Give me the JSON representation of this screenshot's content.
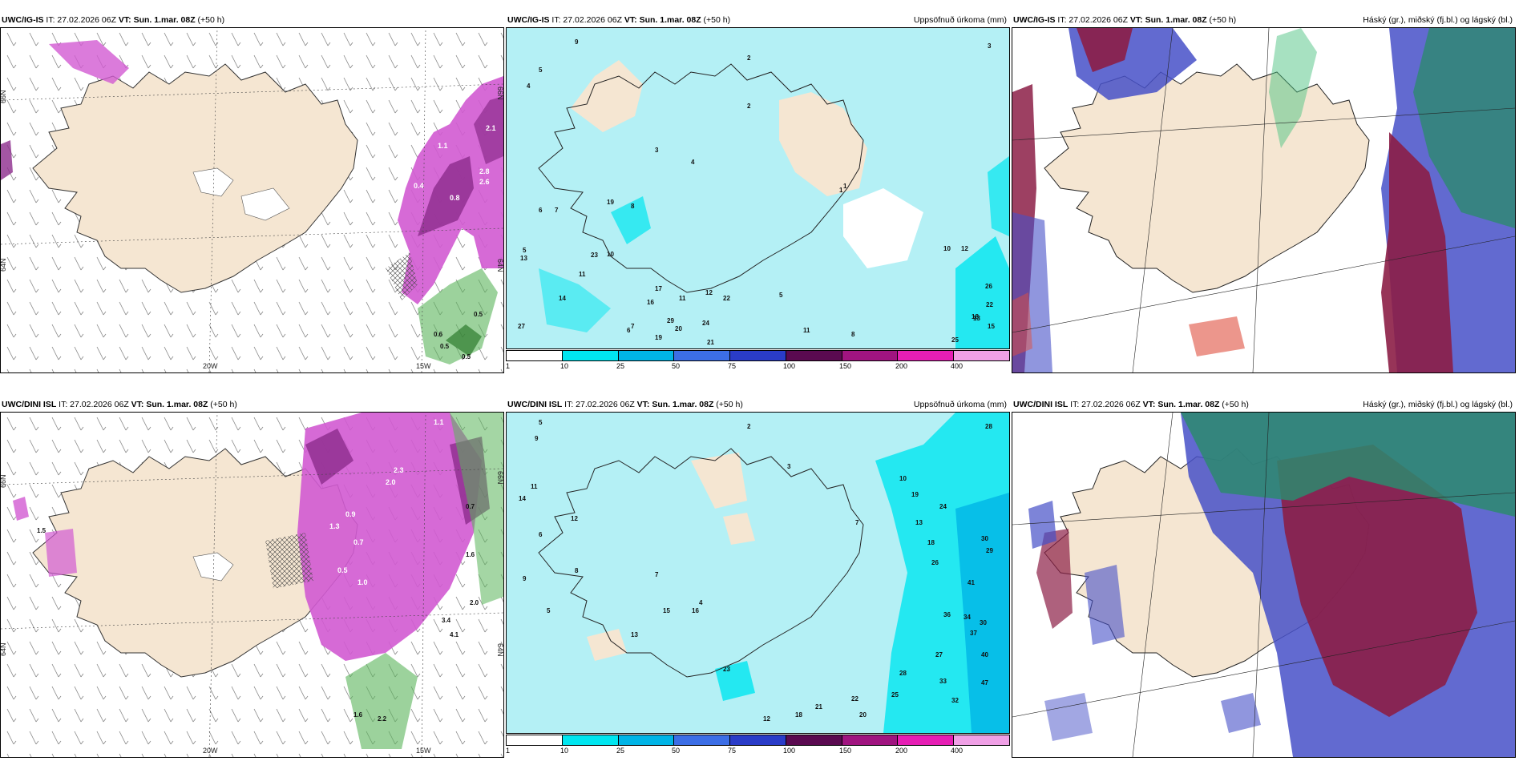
{
  "rows": [
    {
      "model": "UWC/IG-IS",
      "init_time": "IT: 27.02.2026 06Z",
      "valid_time": "VT: Sun. 1.mar. 08Z",
      "lead": "(+50 h)"
    },
    {
      "model": "UWC/DINI ISL",
      "init_time": "IT: 27.02.2026 06Z",
      "valid_time": "VT: Sun. 1.mar. 08Z",
      "lead": "(+50 h)"
    }
  ],
  "panel_titles": {
    "precip": "Uppsöfnuð úrkoma (mm)",
    "clouds": "Háský (gr.), miðský (fj.bl.) og lágský (bl.)"
  },
  "axis_labels": {
    "lon": [
      "20W",
      "15W"
    ],
    "lat_left": [
      "66N",
      "64N"
    ],
    "lat_right": [
      "66N",
      "64N"
    ]
  },
  "precip_legend": {
    "ticks": [
      "1",
      "10",
      "25",
      "50",
      "75",
      "100",
      "150",
      "200",
      "400"
    ],
    "colors": [
      "#ffffff",
      "#00e6f0",
      "#00b4e6",
      "#3c6ee6",
      "#2a3cc8",
      "#5a0a50",
      "#a01480",
      "#e61eb4",
      "#f0a0e6"
    ]
  },
  "colors": {
    "land": "#f5e6d2",
    "ocean_precip": "#b4f0f5",
    "snow_purple": "#d25ad2",
    "snow_dark": "#8c2c8c",
    "rain_green": "#5ab45a",
    "high_cloud": "#2d8a6e",
    "mid_cloud": "#8c1e46",
    "low_cloud": "#4650c8"
  },
  "top_precip_values": [
    "9",
    "3",
    "4",
    "5",
    "2",
    "1",
    "4",
    "6",
    "3",
    "5",
    "7",
    "8",
    "10",
    "13",
    "11",
    "19",
    "23",
    "27",
    "14",
    "6",
    "7",
    "17",
    "29",
    "20",
    "21",
    "19",
    "24",
    "22",
    "11",
    "12",
    "16",
    "1",
    "2",
    "5",
    "8",
    "10",
    "13",
    "12",
    "26",
    "18",
    "15",
    "25",
    "22",
    "11"
  ],
  "bottom_precip_values": [
    "5",
    "9",
    "11",
    "14",
    "12",
    "4",
    "6",
    "5",
    "7",
    "8",
    "9",
    "13",
    "2",
    "3",
    "7",
    "10",
    "19",
    "24",
    "28",
    "13",
    "18",
    "26",
    "30",
    "29",
    "41",
    "36",
    "34",
    "30",
    "37",
    "40",
    "47",
    "33",
    "28",
    "25",
    "20",
    "23",
    "22",
    "12",
    "18",
    "21",
    "15",
    "16",
    "32",
    "27"
  ],
  "top_wind_values": [
    "2.1",
    "2.8",
    "2.6",
    "0.5",
    "0.6",
    "0.5",
    "0.5",
    "1.1",
    "0.4",
    "0.8"
  ],
  "bottom_wind_values": [
    "1.1",
    "2.0",
    "2.3",
    "1.3",
    "0.9",
    "0.7",
    "0.5",
    "1.0",
    "1.6",
    "2.0",
    "4.1",
    "3.4",
    "1.6",
    "2.2",
    "0.7",
    "1.5"
  ]
}
